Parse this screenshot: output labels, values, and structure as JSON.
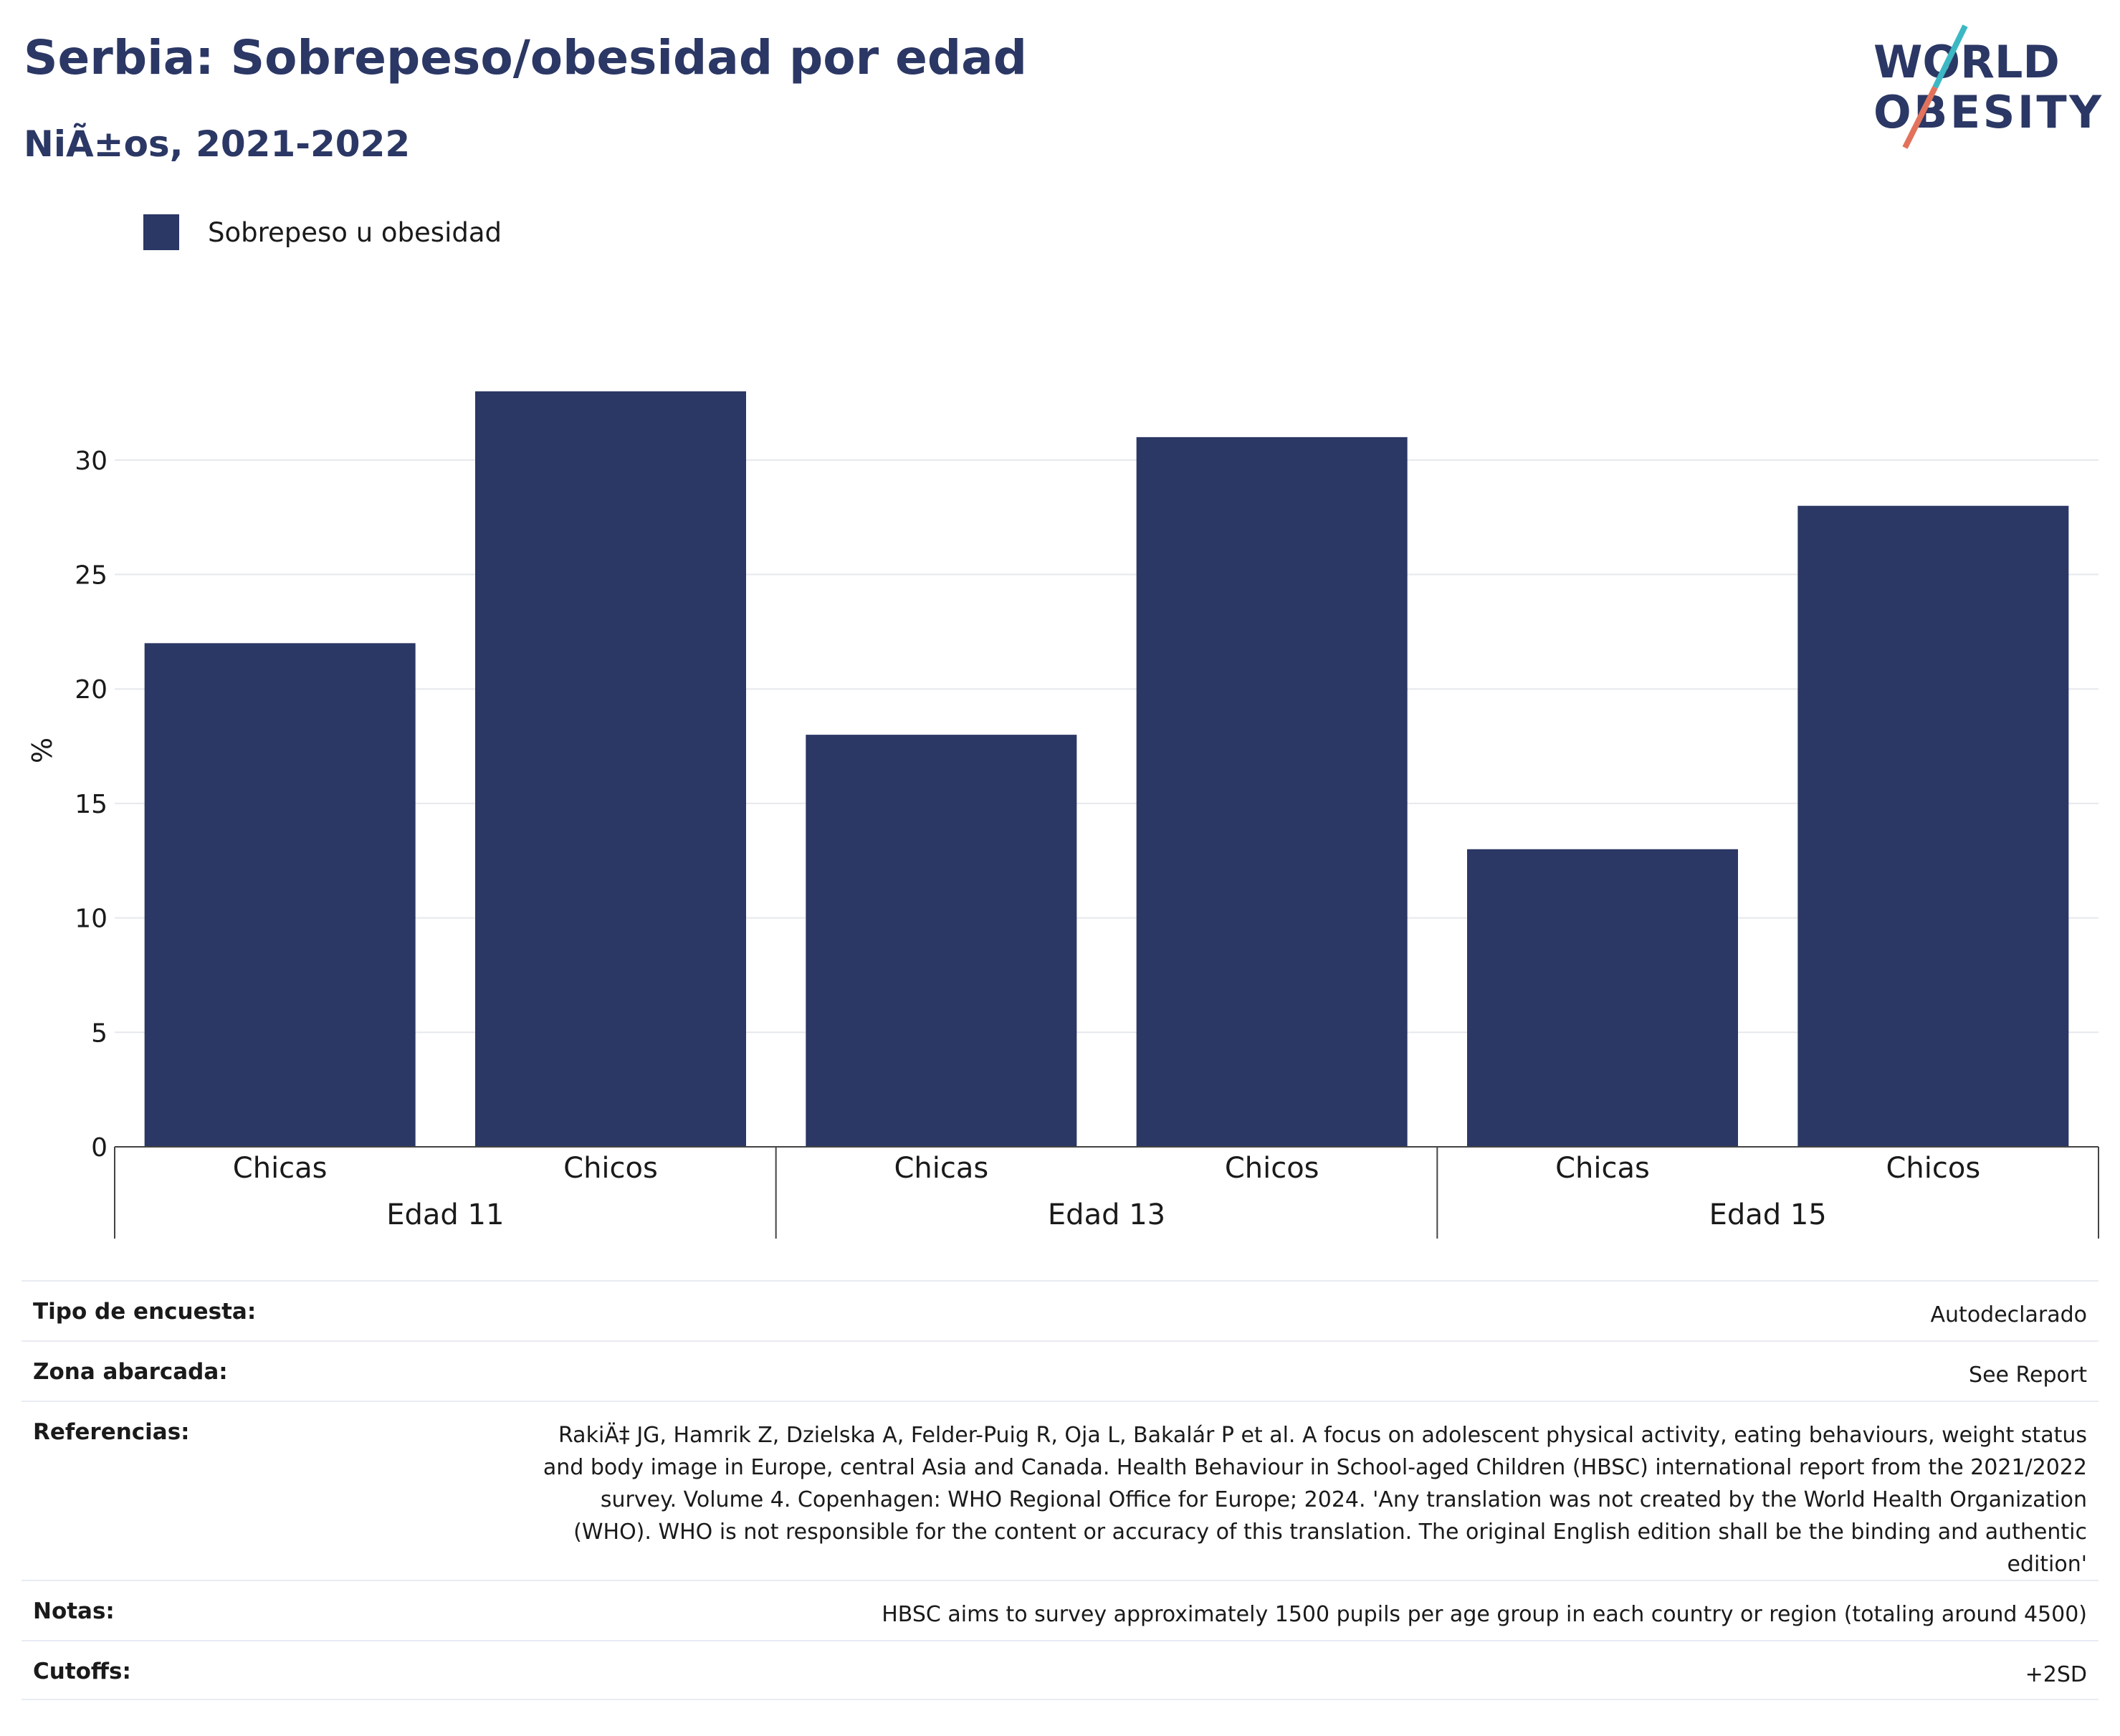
{
  "header": {
    "title": "Serbia: Sobrepeso/obesidad por edad",
    "subtitle": "NiÃ±os, 2021-2022"
  },
  "logo": {
    "line1": "WORLD",
    "line2": "OBESITY",
    "accent_color": "#e2725b",
    "accent_color2": "#3bb8c3",
    "text_color": "#2b3764"
  },
  "chart_data": {
    "type": "bar",
    "legend": [
      {
        "name": "Sobrepeso u obesidad",
        "color": "#2b3764"
      }
    ],
    "legend_position": "top-left",
    "groups": [
      "Edad 11",
      "Edad 13",
      "Edad 15"
    ],
    "categories": [
      "Chicas",
      "Chicos",
      "Chicas",
      "Chicos",
      "Chicas",
      "Chicos"
    ],
    "series": [
      {
        "name": "Sobrepeso u obesidad",
        "values": [
          22,
          33,
          18,
          31,
          13,
          28
        ]
      }
    ],
    "ylabel": "%",
    "ylim": [
      0,
      33
    ],
    "yticks": [
      0,
      5,
      10,
      15,
      20,
      25,
      30
    ],
    "grid": true,
    "bar_color": "#2b3764"
  },
  "info": [
    {
      "label": "Tipo de encuesta:",
      "value": "Autodeclarado"
    },
    {
      "label": "Zona abarcada:",
      "value": "See Report"
    },
    {
      "label": "Referencias:",
      "value": "RakiÄ‡ JG, Hamrik Z, Dzielska A, Felder-Puig R, Oja L, Bakalár P et al. A focus on adolescent physical activity, eating behaviours, weight status and body image in Europe, central Asia and Canada. Health Behaviour in School-aged Children (HBSC) international report from the 2021/2022 survey. Volume 4. Copenhagen: WHO Regional Office for Europe; 2024. 'Any translation was not created by the World Health Organization (WHO). WHO is not responsible for the content or accuracy of this translation. The original English edition shall be the binding and authentic edition'"
    },
    {
      "label": "Notas:",
      "value": "HBSC aims to survey approximately 1500 pupils per age group in each country or region (totaling around 4500)"
    },
    {
      "label": "Cutoffs:",
      "value": "+2SD"
    }
  ]
}
